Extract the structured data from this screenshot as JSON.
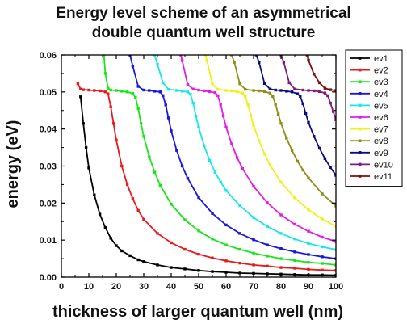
{
  "chart_data": {
    "type": "line",
    "title": "Energy level scheme of an asymmetrical\ndouble quantum well structure",
    "xlabel": "thickness of larger quantum well (nm)",
    "ylabel": "energy (eV)",
    "xlim": [
      0,
      100
    ],
    "ylim": [
      0,
      0.06
    ],
    "x_ticks": [
      "0",
      "10",
      "20",
      "30",
      "40",
      "50",
      "60",
      "70",
      "80",
      "90",
      "100"
    ],
    "y_ticks": [
      "0.00",
      "0.01",
      "0.02",
      "0.03",
      "0.04",
      "0.05",
      "0.06"
    ],
    "legend_position": "top-right",
    "series": [
      {
        "name": "ev1",
        "color": "#000000",
        "x": [
          7,
          8,
          9,
          10,
          12,
          14,
          16,
          18,
          20,
          22,
          25,
          28,
          30,
          35,
          40,
          45,
          50,
          55,
          60,
          65,
          70,
          75,
          80,
          85,
          90,
          95,
          100
        ],
        "y": [
          0.0487,
          0.0415,
          0.035,
          0.0295,
          0.0222,
          0.017,
          0.0134,
          0.0105,
          0.0085,
          0.0071,
          0.0058,
          0.0047,
          0.0042,
          0.0033,
          0.0026,
          0.0022,
          0.0018,
          0.0015,
          0.0013,
          0.0011,
          0.001,
          0.0009,
          0.0008,
          0.0007,
          0.0006,
          0.0006,
          0.0005
        ]
      },
      {
        "name": "ev2",
        "color": "#e8191c",
        "x": [
          6,
          7,
          8,
          10,
          12,
          14,
          16,
          17,
          18,
          19,
          20,
          22,
          24,
          26,
          28,
          30,
          35,
          40,
          45,
          50,
          55,
          60,
          65,
          70,
          75,
          80,
          85,
          90,
          95,
          100
        ],
        "y": [
          0.0522,
          0.0508,
          0.0506,
          0.0505,
          0.0504,
          0.0503,
          0.05,
          0.0495,
          0.046,
          0.0415,
          0.037,
          0.03,
          0.025,
          0.0212,
          0.018,
          0.0156,
          0.0118,
          0.0093,
          0.0075,
          0.0062,
          0.0052,
          0.0044,
          0.0038,
          0.0033,
          0.003,
          0.0026,
          0.0024,
          0.0021,
          0.0019,
          0.0018
        ]
      },
      {
        "name": "ev3",
        "color": "#19e619",
        "x": [
          15.5,
          16,
          17,
          18,
          20,
          22,
          24,
          26,
          27,
          28,
          29,
          30,
          32,
          34,
          36,
          40,
          45,
          50,
          55,
          60,
          65,
          70,
          75,
          80,
          85,
          90,
          95,
          100
        ],
        "y": [
          0.06,
          0.055,
          0.051,
          0.0505,
          0.0504,
          0.0502,
          0.05,
          0.0496,
          0.0485,
          0.0455,
          0.0415,
          0.038,
          0.0325,
          0.0283,
          0.0248,
          0.0197,
          0.0155,
          0.0125,
          0.0103,
          0.0087,
          0.0075,
          0.0065,
          0.0057,
          0.005,
          0.0045,
          0.004,
          0.0037,
          0.0033
        ]
      },
      {
        "name": "ev4",
        "color": "#1818d8",
        "x": [
          25,
          26,
          28,
          30,
          32,
          34,
          36,
          37,
          38,
          39,
          40,
          42,
          44,
          46,
          50,
          55,
          60,
          65,
          70,
          75,
          80,
          85,
          90,
          95,
          100
        ],
        "y": [
          0.06,
          0.057,
          0.0515,
          0.0505,
          0.0504,
          0.0502,
          0.05,
          0.049,
          0.0465,
          0.043,
          0.0395,
          0.0342,
          0.03,
          0.0267,
          0.0215,
          0.0172,
          0.0141,
          0.0118,
          0.0101,
          0.0087,
          0.0077,
          0.0068,
          0.0061,
          0.0055,
          0.005
        ]
      },
      {
        "name": "ev5",
        "color": "#19e6e6",
        "x": [
          34,
          35,
          37,
          39,
          42,
          44,
          46,
          47,
          48,
          49,
          50,
          52,
          54,
          56,
          58,
          60,
          65,
          70,
          75,
          80,
          85,
          90,
          95,
          100
        ],
        "y": [
          0.06,
          0.0575,
          0.0525,
          0.0507,
          0.0504,
          0.0502,
          0.05,
          0.0494,
          0.047,
          0.0435,
          0.0405,
          0.0355,
          0.0315,
          0.0283,
          0.0257,
          0.0234,
          0.0193,
          0.0161,
          0.0137,
          0.0118,
          0.0103,
          0.0091,
          0.0082,
          0.0074
        ]
      },
      {
        "name": "ev6",
        "color": "#e619e6",
        "x": [
          43.5,
          44,
          46,
          48,
          50,
          52,
          54,
          56,
          57,
          58,
          59,
          60,
          62,
          64,
          66,
          70,
          75,
          80,
          85,
          90,
          95,
          100
        ],
        "y": [
          0.06,
          0.0585,
          0.052,
          0.0508,
          0.0505,
          0.0503,
          0.0501,
          0.0498,
          0.049,
          0.0467,
          0.0435,
          0.0405,
          0.036,
          0.0323,
          0.0293,
          0.0245,
          0.0201,
          0.0168,
          0.0143,
          0.0124,
          0.0108,
          0.0096
        ]
      },
      {
        "name": "ev7",
        "color": "#f0f01a",
        "x": [
          52.5,
          53,
          55,
          57,
          60,
          62,
          64,
          66,
          67,
          68,
          69,
          70,
          72,
          74,
          76,
          80,
          85,
          90,
          95,
          100
        ],
        "y": [
          0.06,
          0.0585,
          0.0522,
          0.0507,
          0.0504,
          0.0503,
          0.0501,
          0.0497,
          0.0488,
          0.0465,
          0.0437,
          0.041,
          0.0368,
          0.0333,
          0.0303,
          0.0256,
          0.0214,
          0.0182,
          0.0157,
          0.0137
        ]
      },
      {
        "name": "ev8",
        "color": "#8f8f18",
        "x": [
          62,
          63,
          65,
          67,
          70,
          72,
          74,
          76,
          77,
          78,
          79,
          80,
          82,
          84,
          86,
          88,
          90,
          95,
          100
        ],
        "y": [
          0.06,
          0.058,
          0.0522,
          0.0507,
          0.0504,
          0.0503,
          0.0501,
          0.0497,
          0.0488,
          0.0467,
          0.044,
          0.0415,
          0.0375,
          0.0342,
          0.0313,
          0.0289,
          0.0268,
          0.0225,
          0.0192
        ]
      },
      {
        "name": "ev9",
        "color": "#0d0d80",
        "x": [
          71,
          72,
          74,
          76,
          78,
          80,
          82,
          84,
          86,
          87,
          88,
          89,
          90,
          92,
          94,
          96,
          98,
          100
        ],
        "y": [
          0.06,
          0.058,
          0.0523,
          0.0508,
          0.0505,
          0.0504,
          0.0502,
          0.05,
          0.0495,
          0.0488,
          0.0468,
          0.0442,
          0.0418,
          0.038,
          0.0348,
          0.032,
          0.0296,
          0.0275
        ]
      },
      {
        "name": "ev10",
        "color": "#801a80",
        "x": [
          80,
          81,
          83,
          85,
          88,
          90,
          92,
          94,
          96,
          97,
          98,
          99,
          100
        ],
        "y": [
          0.06,
          0.058,
          0.0525,
          0.0508,
          0.0505,
          0.0504,
          0.0503,
          0.0501,
          0.0497,
          0.049,
          0.047,
          0.0447,
          0.0425
        ]
      },
      {
        "name": "ev11",
        "color": "#800d0d",
        "x": [
          89.5,
          90,
          92,
          94,
          96,
          98,
          100
        ],
        "y": [
          0.06,
          0.0586,
          0.0548,
          0.0525,
          0.051,
          0.0506,
          0.0504
        ]
      }
    ]
  }
}
